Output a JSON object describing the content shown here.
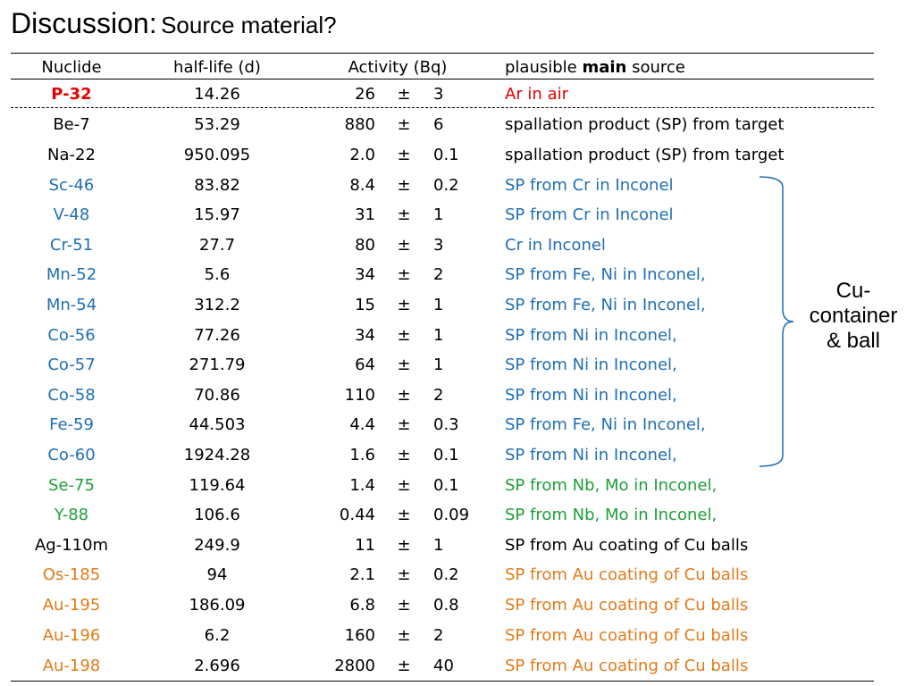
{
  "title": {
    "main": "Discussion:",
    "sub": "Source material?"
  },
  "table": {
    "headers": {
      "nuclide": "Nuclide",
      "half_life": "half-life (d)",
      "activity": "Activity (Bq)",
      "source_pre": "plausible",
      "source_bold": "main",
      "source_post": "source"
    },
    "pm_symbol": "±",
    "rows": [
      {
        "nuclide": "P-32",
        "half_life": "14.26",
        "activity": "26",
        "error": "3",
        "source": "Ar in air",
        "color": "#e60000",
        "bold": true
      },
      {
        "nuclide": "Be-7",
        "half_life": "53.29",
        "activity": "880",
        "error": "6",
        "source": "spallation product (SP) from target",
        "color": "#000000"
      },
      {
        "nuclide": "Na-22",
        "half_life": "950.095",
        "activity": "2.0",
        "error": "0.1",
        "source": "spallation product (SP) from target",
        "color": "#000000"
      },
      {
        "nuclide": "Sc-46",
        "half_life": "83.82",
        "activity": "8.4",
        "error": "0.2",
        "source": "SP from Cr in Inconel",
        "color": "#1f6fb5"
      },
      {
        "nuclide": "V-48",
        "half_life": "15.97",
        "activity": "31",
        "error": "1",
        "source": "SP from Cr in Inconel",
        "color": "#1f6fb5"
      },
      {
        "nuclide": "Cr-51",
        "half_life": "27.7",
        "activity": "80",
        "error": "3",
        "source": "Cr in Inconel",
        "color": "#1f6fb5"
      },
      {
        "nuclide": "Mn-52",
        "half_life": "5.6",
        "activity": "34",
        "error": "2",
        "source": "SP from Fe, Ni in Inconel,",
        "color": "#1f6fb5"
      },
      {
        "nuclide": "Mn-54",
        "half_life": "312.2",
        "activity": "15",
        "error": "1",
        "source": "SP from Fe, Ni in Inconel,",
        "color": "#1f6fb5"
      },
      {
        "nuclide": "Co-56",
        "half_life": "77.26",
        "activity": "34",
        "error": "1",
        "source": "SP from Ni in Inconel,",
        "color": "#1f6fb5"
      },
      {
        "nuclide": "Co-57",
        "half_life": "271.79",
        "activity": "64",
        "error": "1",
        "source": "SP from Ni in Inconel,",
        "color": "#1f6fb5"
      },
      {
        "nuclide": "Co-58",
        "half_life": "70.86",
        "activity": "110",
        "error": "2",
        "source": "SP from Ni in Inconel,",
        "color": "#1f6fb5"
      },
      {
        "nuclide": "Fe-59",
        "half_life": "44.503",
        "activity": "4.4",
        "error": "0.3",
        "source": "SP from Fe, Ni in Inconel,",
        "color": "#1f6fb5"
      },
      {
        "nuclide": "Co-60",
        "half_life": "1924.28",
        "activity": "1.6",
        "error": "0.1",
        "source": "SP from Ni in Inconel,",
        "color": "#1f6fb5"
      },
      {
        "nuclide": "Se-75",
        "half_life": "119.64",
        "activity": "1.4",
        "error": "0.1",
        "source": "SP from Nb, Mo in Inconel,",
        "color": "#1e9e3a"
      },
      {
        "nuclide": "Y-88",
        "half_life": "106.6",
        "activity": "0.44",
        "error": "0.09",
        "source": "SP from Nb, Mo in Inconel,",
        "color": "#1e9e3a"
      },
      {
        "nuclide": "Ag-110m",
        "half_life": "249.9",
        "activity": "11",
        "error": "1",
        "source": "SP from Au coating of Cu balls",
        "color": "#000000"
      },
      {
        "nuclide": "Os-185",
        "half_life": "94",
        "activity": "2.1",
        "error": "0.2",
        "source": "SP from Au coating of Cu balls",
        "color": "#e07b1a"
      },
      {
        "nuclide": "Au-195",
        "half_life": "186.09",
        "activity": "6.8",
        "error": "0.8",
        "source": "SP from Au coating of Cu balls",
        "color": "#e07b1a"
      },
      {
        "nuclide": "Au-196",
        "half_life": "6.2",
        "activity": "160",
        "error": "2",
        "source": "SP from Au coating of Cu balls",
        "color": "#e07b1a"
      },
      {
        "nuclide": "Au-198",
        "half_life": "2.696",
        "activity": "2800",
        "error": "40",
        "source": "SP from Au coating of Cu balls",
        "color": "#e07b1a"
      }
    ]
  },
  "brace": {
    "label": "Cu-\ncontainer\n& ball",
    "color": "#1f6fb5"
  }
}
